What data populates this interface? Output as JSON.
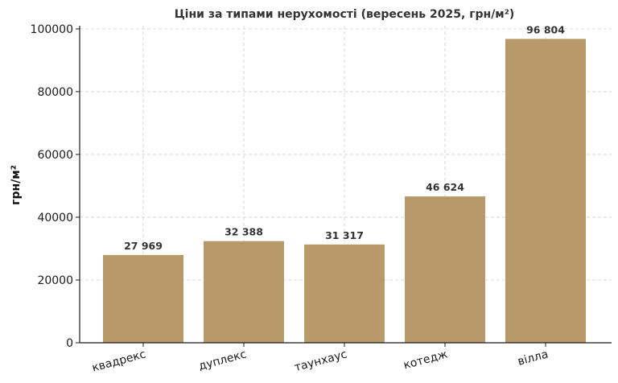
{
  "chart_data": {
    "type": "bar",
    "title": "Ціни за типами нерухомості (вересень 2025, грн/м²)",
    "xlabel": "",
    "ylabel": "грн/м²",
    "categories": [
      "квадрекс",
      "дуплекс",
      "таунхаус",
      "котедж",
      "вілла"
    ],
    "values": [
      27969,
      32388,
      31317,
      46624,
      96804
    ],
    "data_labels": [
      "27 969",
      "32 388",
      "31 317",
      "46 624",
      "96 804"
    ],
    "ylim": [
      0,
      101000
    ],
    "yticks": [
      0,
      20000,
      40000,
      60000,
      80000,
      100000
    ],
    "ytick_labels": [
      "0",
      "20000",
      "40000",
      "60000",
      "80000",
      "100000"
    ],
    "grid": true,
    "bar_color": "#b8996a"
  }
}
